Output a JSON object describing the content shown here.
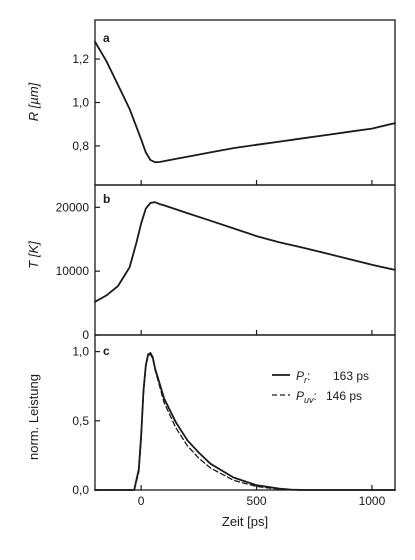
{
  "chart_data": [
    {
      "panel": "a",
      "type": "line",
      "ylabel": "R [µm]",
      "xlim": [
        -200,
        1100
      ],
      "ylim": [
        0.62,
        1.38
      ],
      "yticks": [
        0.8,
        1.0,
        1.2
      ],
      "ytick_labels": [
        "0,8",
        "1,0",
        "1,2"
      ],
      "series": [
        {
          "style": "solid",
          "x": [
            -200,
            -150,
            -100,
            -50,
            0,
            20,
            40,
            60,
            80,
            100,
            150,
            200,
            300,
            400,
            500,
            600,
            700,
            800,
            900,
            1000,
            1100
          ],
          "y": [
            1.28,
            1.19,
            1.08,
            0.97,
            0.83,
            0.77,
            0.735,
            0.725,
            0.726,
            0.73,
            0.74,
            0.75,
            0.77,
            0.79,
            0.805,
            0.82,
            0.835,
            0.85,
            0.865,
            0.88,
            0.905
          ]
        }
      ]
    },
    {
      "panel": "b",
      "type": "line",
      "ylabel": "T [K]",
      "xlim": [
        -200,
        1100
      ],
      "ylim": [
        0,
        23500
      ],
      "yticks": [
        0,
        10000,
        20000
      ],
      "ytick_labels": [
        "0",
        "10000",
        "20000"
      ],
      "series": [
        {
          "style": "solid",
          "x": [
            -200,
            -150,
            -100,
            -50,
            -20,
            0,
            20,
            40,
            60,
            80,
            100,
            200,
            300,
            400,
            500,
            600,
            700,
            800,
            900,
            1000,
            1100
          ],
          "y": [
            5200,
            6200,
            7700,
            10600,
            14500,
            17500,
            19800,
            20700,
            20800,
            20500,
            20300,
            19100,
            17900,
            16700,
            15500,
            14500,
            13700,
            12800,
            11900,
            11000,
            10200
          ]
        }
      ]
    },
    {
      "panel": "c",
      "type": "line",
      "ylabel": "norm. Leistung",
      "xlabel": "Zeit [ps]",
      "xlim": [
        -200,
        1100
      ],
      "ylim": [
        0,
        1.12
      ],
      "yticks": [
        0.0,
        0.5,
        1.0
      ],
      "ytick_labels": [
        "0,0",
        "0,5",
        "1,0"
      ],
      "xticks": [
        0,
        500,
        1000
      ],
      "xtick_labels": [
        "0",
        "500",
        "1000"
      ],
      "legend_position": "top-right",
      "series": [
        {
          "style": "solid",
          "x": [
            -200,
            -30,
            -10,
            0,
            10,
            20,
            30,
            40,
            50,
            60,
            80,
            100,
            150,
            200,
            250,
            300,
            400,
            500,
            600,
            650,
            700,
            1100
          ],
          "y": [
            0,
            0,
            0.15,
            0.4,
            0.72,
            0.9,
            0.98,
            0.99,
            0.96,
            0.88,
            0.77,
            0.66,
            0.49,
            0.36,
            0.27,
            0.19,
            0.09,
            0.035,
            0.01,
            0.003,
            0,
            0
          ]
        },
        {
          "style": "dashed",
          "x": [
            -200,
            -30,
            -10,
            0,
            10,
            20,
            30,
            40,
            50,
            60,
            80,
            100,
            150,
            200,
            250,
            300,
            400,
            500,
            600,
            650,
            700,
            1100
          ],
          "y": [
            0,
            0,
            0.13,
            0.37,
            0.7,
            0.89,
            0.97,
            0.98,
            0.95,
            0.87,
            0.75,
            0.63,
            0.45,
            0.32,
            0.23,
            0.16,
            0.07,
            0.025,
            0.006,
            0.002,
            0,
            0
          ]
        }
      ],
      "legend": [
        {
          "style": "solid",
          "symbol_main": "P",
          "symbol_sub": "r",
          "suffix": ":",
          "value": "163 ps"
        },
        {
          "style": "dashed",
          "symbol_main": "P",
          "symbol_sub": "uv",
          "suffix": ":",
          "value": "146 ps"
        }
      ]
    }
  ]
}
